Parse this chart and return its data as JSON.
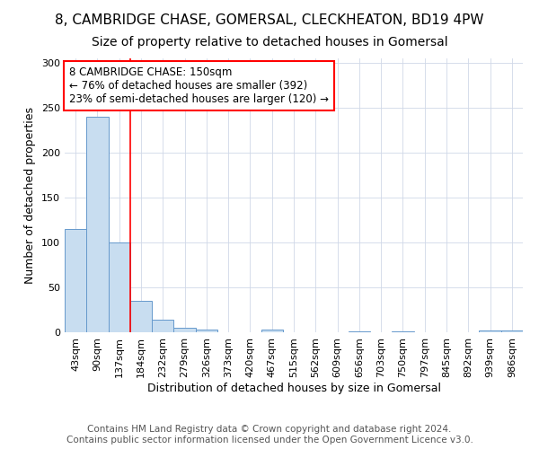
{
  "title_line1": "8, CAMBRIDGE CHASE, GOMERSAL, CLECKHEATON, BD19 4PW",
  "title_line2": "Size of property relative to detached houses in Gomersal",
  "xlabel": "Distribution of detached houses by size in Gomersal",
  "ylabel": "Number of detached properties",
  "bar_color": "#c8ddf0",
  "bar_edge_color": "#6699cc",
  "categories": [
    "43sqm",
    "90sqm",
    "137sqm",
    "184sqm",
    "232sqm",
    "279sqm",
    "326sqm",
    "373sqm",
    "420sqm",
    "467sqm",
    "515sqm",
    "562sqm",
    "609sqm",
    "656sqm",
    "703sqm",
    "750sqm",
    "797sqm",
    "845sqm",
    "892sqm",
    "939sqm",
    "986sqm"
  ],
  "values": [
    115,
    240,
    100,
    35,
    14,
    5,
    3,
    0,
    0,
    3,
    0,
    0,
    0,
    1,
    0,
    1,
    0,
    0,
    0,
    2,
    2
  ],
  "ylim": [
    0,
    305
  ],
  "yticks": [
    0,
    50,
    100,
    150,
    200,
    250,
    300
  ],
  "red_line_x": 2.5,
  "annotation_text": "8 CAMBRIDGE CHASE: 150sqm\n← 76% of detached houses are smaller (392)\n23% of semi-detached houses are larger (120) →",
  "footer_line1": "Contains HM Land Registry data © Crown copyright and database right 2024.",
  "footer_line2": "Contains public sector information licensed under the Open Government Licence v3.0.",
  "background_color": "#ffffff",
  "plot_background_color": "#ffffff",
  "title_fontsize": 11,
  "subtitle_fontsize": 10,
  "axis_label_fontsize": 9,
  "tick_fontsize": 8,
  "annotation_fontsize": 8.5,
  "footer_fontsize": 7.5
}
